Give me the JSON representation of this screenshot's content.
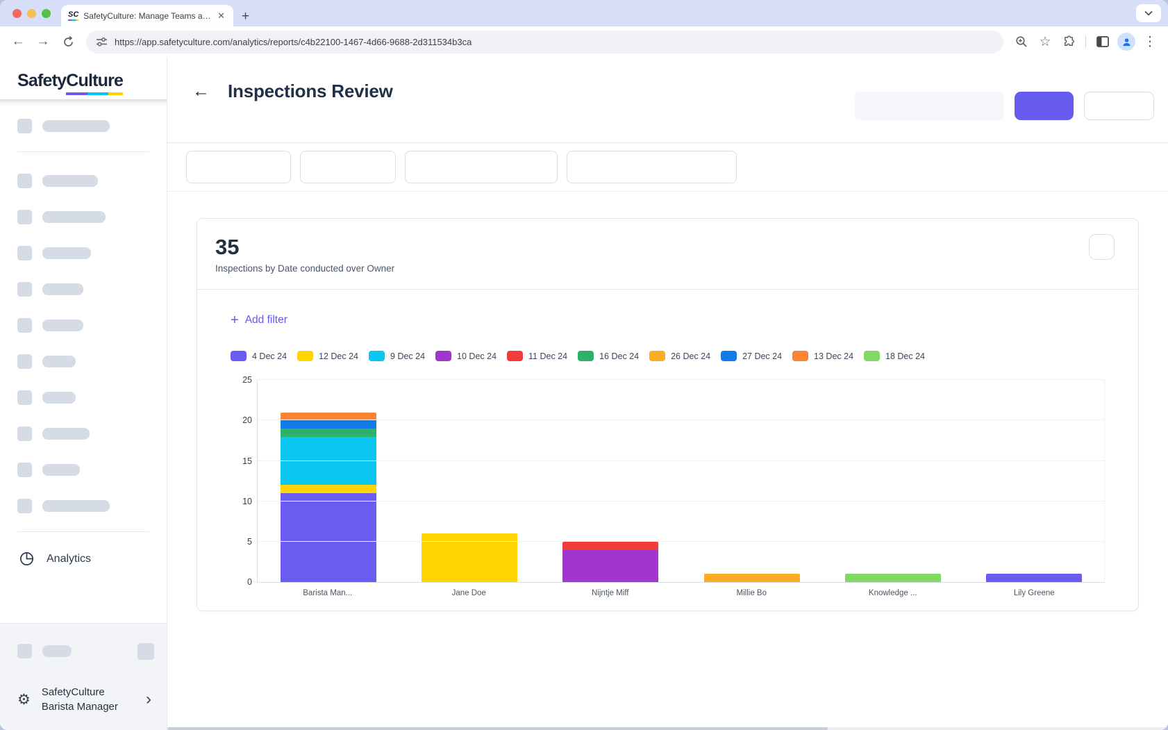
{
  "browser": {
    "tab_title": "SafetyCulture: Manage Teams and...",
    "url": "https://app.safetyculture.com/analytics/reports/c4b22100-1467-4d66-9688-2d311534b3ca",
    "favicon_text": "SC"
  },
  "sidebar": {
    "logo_safety": "Safety",
    "logo_culture": "Culture",
    "analytics_label": "Analytics",
    "org_name_line1": "SafetyCulture",
    "org_name_line2": "Barista Manager"
  },
  "header": {
    "title": "Inspections Review"
  },
  "card": {
    "count": "35",
    "subtitle": "Inspections by Date conducted over Owner",
    "add_filter_label": "Add filter"
  },
  "colors": {
    "accent": "#6559F4",
    "primary_button": "#685CF0",
    "chrome_strip": "#D7DEF8"
  },
  "chart_data": {
    "type": "bar",
    "stacked": true,
    "title": "Inspections by Date conducted over Owner",
    "total": 35,
    "categories": [
      "Barista Man...",
      "Jane Doe",
      "Nijntje Miff",
      "Millie Bo",
      "Knowledge ...",
      "Lily Greene"
    ],
    "series": [
      {
        "name": "4 Dec 24",
        "color": "#6A5CF0",
        "values": [
          11,
          0,
          0,
          0,
          0,
          1
        ]
      },
      {
        "name": "12 Dec 24",
        "color": "#FFD400",
        "values": [
          1,
          6,
          0,
          0,
          0,
          0
        ]
      },
      {
        "name": "9 Dec 24",
        "color": "#0CC6F2",
        "values": [
          6,
          0,
          0,
          0,
          0,
          0
        ]
      },
      {
        "name": "10 Dec 24",
        "color": "#A136CE",
        "values": [
          0,
          0,
          4,
          0,
          0,
          0
        ]
      },
      {
        "name": "11 Dec 24",
        "color": "#F23C3C",
        "values": [
          0,
          0,
          1,
          0,
          0,
          0
        ]
      },
      {
        "name": "16 Dec 24",
        "color": "#2EB269",
        "values": [
          1,
          0,
          0,
          0,
          0,
          0
        ]
      },
      {
        "name": "26 Dec 24",
        "color": "#FBAD26",
        "values": [
          0,
          0,
          0,
          1,
          0,
          0
        ]
      },
      {
        "name": "27 Dec 24",
        "color": "#117BE8",
        "values": [
          1,
          0,
          0,
          0,
          0,
          0
        ]
      },
      {
        "name": "13 Dec 24",
        "color": "#FA8433",
        "values": [
          1,
          0,
          0,
          0,
          0,
          0
        ]
      },
      {
        "name": "18 Dec 24",
        "color": "#81D964",
        "values": [
          0,
          0,
          0,
          0,
          1,
          0
        ]
      }
    ],
    "ylim": [
      0,
      25
    ],
    "yticks": [
      0,
      5,
      10,
      15,
      20,
      25
    ],
    "grid": true,
    "legend_position": "top"
  }
}
